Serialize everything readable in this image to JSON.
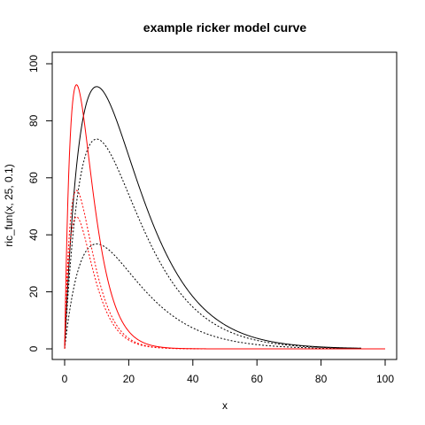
{
  "chart_data": {
    "type": "line",
    "title": "example ricker model curve",
    "xlabel": "x",
    "ylabel": "ric_fun(x, 25, 0.1)",
    "xlim": [
      0,
      100
    ],
    "ylim": [
      0,
      100
    ],
    "xticks": [
      0,
      20,
      40,
      60,
      80,
      100
    ],
    "yticks": [
      0,
      20,
      40,
      60,
      80,
      100
    ],
    "grid": false,
    "legend": "none",
    "series": [
      {
        "a": 25,
        "b": 0.1,
        "scale": 1.0,
        "xmax": 92.5,
        "color": "#000000",
        "style": "solid"
      },
      {
        "a": 25,
        "b": 0.1,
        "scale": 0.8,
        "xmax": 92.5,
        "color": "#000000",
        "style": "dotted"
      },
      {
        "a": 25,
        "b": 0.1,
        "scale": 0.4,
        "xmax": 92.5,
        "color": "#000000",
        "style": "dotted"
      },
      {
        "a": 68,
        "b": 0.27,
        "scale": 1.0,
        "xmax": 100,
        "color": "#ff0000",
        "style": "solid"
      },
      {
        "a": 68,
        "b": 0.27,
        "scale": 0.6,
        "xmax": 100,
        "color": "#ff0000",
        "style": "dotted"
      },
      {
        "a": 68,
        "b": 0.27,
        "scale": 0.5,
        "xmax": 100,
        "color": "#ff0000",
        "style": "dotted"
      }
    ]
  }
}
